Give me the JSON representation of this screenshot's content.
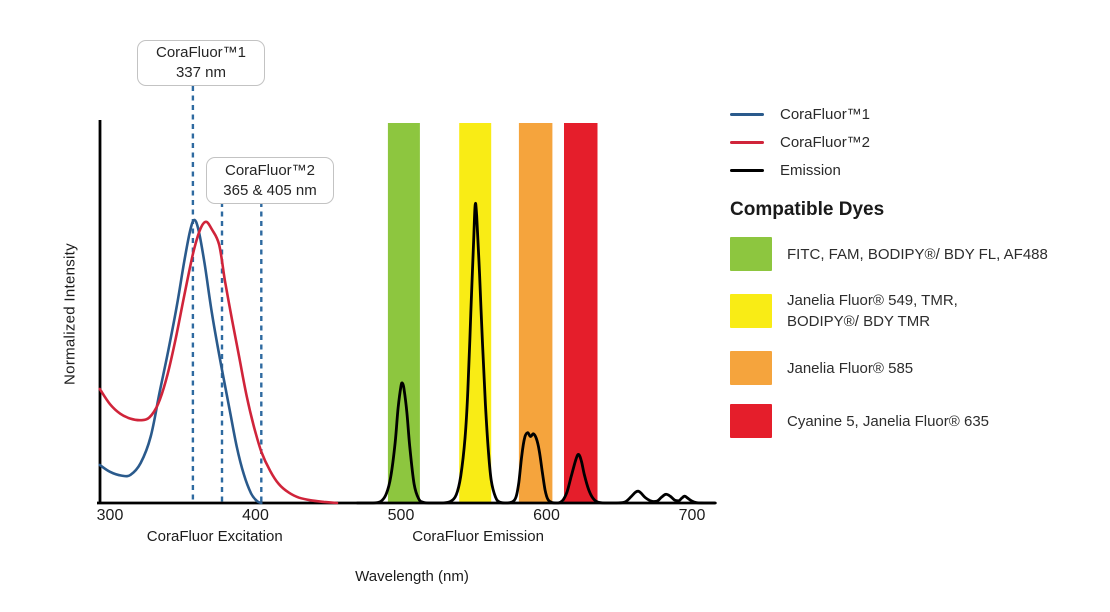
{
  "callouts": [
    {
      "title": "CoraFluor™1",
      "subtitle": "337 nm",
      "lines_nm": [
        357
      ]
    },
    {
      "title": "CoraFluor™2",
      "subtitle": "365 & 405 nm",
      "lines_nm": [
        377,
        404
      ]
    }
  ],
  "annotation_line_color": "#2e6aa0",
  "legend": {
    "entries": [
      {
        "label": "CoraFluor™1",
        "color": "#2A5A8C"
      },
      {
        "label": "CoraFluor™2",
        "color": "#D0243A"
      },
      {
        "label": "Emission",
        "color": "#000000"
      }
    ],
    "dyes_heading": "Compatible Dyes",
    "dyes": [
      {
        "color": "#8DC63F",
        "label": "FITC, FAM, BODIPY®/ BDY FL, AF488",
        "label2": ""
      },
      {
        "color": "#F9EC15",
        "label": "Janelia Fluor® 549, TMR,",
        "label2": "BODIPY®/ BDY TMR"
      },
      {
        "color": "#F5A43D",
        "label": "Janelia Fluor® 585",
        "label2": ""
      },
      {
        "color": "#E51E2B",
        "label": "Cyanine 5, Janelia Fluor® 635",
        "label2": ""
      }
    ]
  },
  "chart_data": {
    "type": "line",
    "title": "",
    "xlabel": "Wavelength (nm)",
    "ylabel": "Normalized Intensity",
    "x_ticks": [
      300,
      400,
      500,
      600,
      700
    ],
    "x_range": [
      293,
      716
    ],
    "y_range": [
      0,
      1
    ],
    "grid": false,
    "legend_position": "right",
    "x_section_labels": [
      {
        "label": "CoraFluor Excitation",
        "center_nm": 372
      },
      {
        "label": "CoraFluor Emission",
        "center_nm": 553
      }
    ],
    "bands": [
      {
        "name": "FITC / FAM / BODIPY BDY FL / AF488 window",
        "nm": [
          491,
          513
        ],
        "color": "#8DC63F"
      },
      {
        "name": "Janelia Fluor 549 / TMR / BODIPY BDY TMR window",
        "nm": [
          540,
          562
        ],
        "color": "#F9EC15"
      },
      {
        "name": "Janelia Fluor 585 window",
        "nm": [
          581,
          604
        ],
        "color": "#F5A43D"
      },
      {
        "name": "Cyanine 5 / Janelia Fluor 635 window",
        "nm": [
          612,
          635
        ],
        "color": "#E51E2B"
      }
    ],
    "series": [
      {
        "name": "CoraFluor™1 excitation",
        "color": "#2A5A8C",
        "points": [
          [
            293,
            0.1
          ],
          [
            300,
            0.082
          ],
          [
            308,
            0.072
          ],
          [
            314,
            0.074
          ],
          [
            321,
            0.105
          ],
          [
            328,
            0.175
          ],
          [
            334,
            0.29
          ],
          [
            340,
            0.4
          ],
          [
            346,
            0.52
          ],
          [
            351,
            0.635
          ],
          [
            355,
            0.715
          ],
          [
            358,
            0.745
          ],
          [
            361,
            0.715
          ],
          [
            365,
            0.63
          ],
          [
            370,
            0.5
          ],
          [
            376,
            0.37
          ],
          [
            382,
            0.25
          ],
          [
            387,
            0.15
          ],
          [
            392,
            0.075
          ],
          [
            397,
            0.025
          ],
          [
            401,
            0.005
          ],
          [
            404,
            0
          ]
        ]
      },
      {
        "name": "CoraFluor™2 excitation",
        "color": "#D0243A",
        "points": [
          [
            293,
            0.3
          ],
          [
            300,
            0.26
          ],
          [
            307,
            0.235
          ],
          [
            314,
            0.222
          ],
          [
            321,
            0.218
          ],
          [
            327,
            0.225
          ],
          [
            333,
            0.26
          ],
          [
            339,
            0.33
          ],
          [
            345,
            0.43
          ],
          [
            351,
            0.545
          ],
          [
            357,
            0.655
          ],
          [
            362,
            0.72
          ],
          [
            366,
            0.74
          ],
          [
            370,
            0.72
          ],
          [
            375,
            0.68
          ],
          [
            379,
            0.585
          ],
          [
            384,
            0.48
          ],
          [
            389,
            0.38
          ],
          [
            394,
            0.28
          ],
          [
            399,
            0.2
          ],
          [
            404,
            0.135
          ],
          [
            410,
            0.085
          ],
          [
            416,
            0.05
          ],
          [
            423,
            0.027
          ],
          [
            430,
            0.014
          ],
          [
            438,
            0.007
          ],
          [
            447,
            0.003
          ],
          [
            456,
            0
          ]
        ]
      },
      {
        "name": "Emission",
        "color": "#000000",
        "points": [
          [
            470,
            0
          ],
          [
            480,
            0
          ],
          [
            486,
            0.004
          ],
          [
            490,
            0.025
          ],
          [
            493,
            0.07
          ],
          [
            496,
            0.16
          ],
          [
            498,
            0.25
          ],
          [
            500,
            0.308
          ],
          [
            501,
            0.315
          ],
          [
            502,
            0.302
          ],
          [
            504,
            0.24
          ],
          [
            506,
            0.15
          ],
          [
            509,
            0.05
          ],
          [
            512,
            0.012
          ],
          [
            515,
            0.002
          ],
          [
            520,
            0
          ],
          [
            528,
            0
          ],
          [
            534,
            0.004
          ],
          [
            538,
            0.022
          ],
          [
            541,
            0.07
          ],
          [
            544,
            0.17
          ],
          [
            546,
            0.3
          ],
          [
            548,
            0.5
          ],
          [
            550,
            0.7
          ],
          [
            551,
            0.785
          ],
          [
            552,
            0.755
          ],
          [
            554,
            0.6
          ],
          [
            556,
            0.42
          ],
          [
            558,
            0.26
          ],
          [
            560,
            0.14
          ],
          [
            562,
            0.06
          ],
          [
            565,
            0.015
          ],
          [
            568,
            0.002
          ],
          [
            572,
            0
          ],
          [
            576,
            0.002
          ],
          [
            579,
            0.015
          ],
          [
            581,
            0.055
          ],
          [
            583,
            0.125
          ],
          [
            585,
            0.172
          ],
          [
            587,
            0.185
          ],
          [
            589,
            0.175
          ],
          [
            591,
            0.182
          ],
          [
            593,
            0.17
          ],
          [
            595,
            0.138
          ],
          [
            597,
            0.085
          ],
          [
            599,
            0.035
          ],
          [
            601,
            0.009
          ],
          [
            604,
            0.001
          ],
          [
            608,
            0
          ],
          [
            611,
            0.006
          ],
          [
            614,
            0.028
          ],
          [
            617,
            0.07
          ],
          [
            620,
            0.112
          ],
          [
            622,
            0.128
          ],
          [
            624,
            0.11
          ],
          [
            626,
            0.075
          ],
          [
            629,
            0.035
          ],
          [
            632,
            0.012
          ],
          [
            635,
            0.003
          ],
          [
            640,
            0
          ],
          [
            648,
            0
          ],
          [
            654,
            0.003
          ],
          [
            658,
            0.016
          ],
          [
            661,
            0.028
          ],
          [
            663,
            0.031
          ],
          [
            665,
            0.026
          ],
          [
            668,
            0.014
          ],
          [
            672,
            0.005
          ],
          [
            676,
            0.005
          ],
          [
            679,
            0.015
          ],
          [
            682,
            0.023
          ],
          [
            685,
            0.018
          ],
          [
            688,
            0.008
          ],
          [
            691,
            0.006
          ],
          [
            693,
            0.013
          ],
          [
            695,
            0.018
          ],
          [
            697,
            0.013
          ],
          [
            700,
            0.005
          ],
          [
            703,
            0.001
          ],
          [
            708,
            0
          ],
          [
            716,
            0
          ]
        ]
      }
    ]
  }
}
